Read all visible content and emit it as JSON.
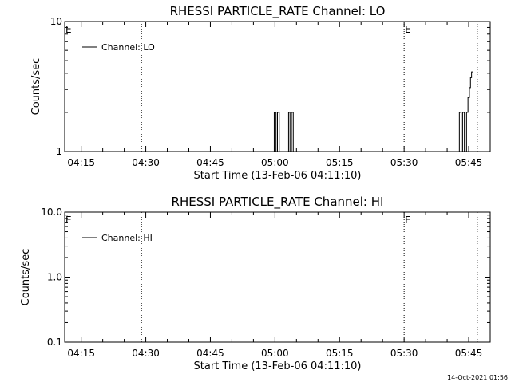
{
  "footer": {
    "timestamp": "14-Oct-2021 01:56"
  },
  "chart_data": [
    {
      "type": "line",
      "title": "RHESSI PARTICLE_RATE Channel: LO",
      "xlabel": "Start Time (13-Feb-06 04:11:10)",
      "ylabel": "Counts/sec",
      "yscale": "log",
      "ylim": [
        1,
        10
      ],
      "ytick_labels": [
        "1",
        "10"
      ],
      "xlim": [
        "04:11:10",
        "05:50:00"
      ],
      "xtick_labels": [
        "04:15",
        "04:30",
        "04:45",
        "05:00",
        "05:15",
        "05:30",
        "05:45"
      ],
      "legend": {
        "location": "top-left",
        "entries": [
          "Channel: LO"
        ]
      },
      "event_markers": [
        {
          "time": "04:29:00",
          "label": ""
        },
        {
          "time": "05:30:00",
          "label": "E"
        },
        {
          "time": "05:47:00",
          "label": ""
        }
      ],
      "start_marker_label": "E",
      "series": [
        {
          "name": "Channel: LO",
          "color": "#000000",
          "points": [
            [
              "04:11:10",
              1
            ],
            [
              "04:59:50",
              1
            ],
            [
              "04:59:50",
              2
            ],
            [
              "05:00:15",
              2
            ],
            [
              "05:00:15",
              1
            ],
            [
              "05:00:35",
              1
            ],
            [
              "05:00:35",
              2
            ],
            [
              "05:01:00",
              2
            ],
            [
              "05:01:00",
              1
            ],
            [
              "05:03:10",
              1
            ],
            [
              "05:03:10",
              2
            ],
            [
              "05:03:30",
              2
            ],
            [
              "05:03:30",
              1
            ],
            [
              "05:03:50",
              1
            ],
            [
              "05:03:50",
              2
            ],
            [
              "05:04:15",
              2
            ],
            [
              "05:04:15",
              1
            ],
            [
              "05:05:10",
              1
            ],
            [
              "05:42:50",
              1
            ],
            [
              "05:42:50",
              2
            ],
            [
              "05:43:15",
              2
            ],
            [
              "05:43:15",
              1
            ],
            [
              "05:43:35",
              1
            ],
            [
              "05:43:35",
              2
            ],
            [
              "05:44:00",
              2
            ],
            [
              "05:44:00",
              1
            ],
            [
              "05:44:30",
              1
            ],
            [
              "05:44:30",
              2
            ],
            [
              "05:44:50",
              2
            ],
            [
              "05:44:50",
              2.6
            ],
            [
              "05:45:10",
              2.6
            ],
            [
              "05:45:10",
              3.1
            ],
            [
              "05:45:25",
              3.1
            ],
            [
              "05:45:25",
              3.7
            ],
            [
              "05:45:40",
              3.7
            ],
            [
              "05:45:40",
              4.1
            ],
            [
              "05:46:00",
              4.1
            ]
          ]
        }
      ]
    },
    {
      "type": "line",
      "title": "RHESSI PARTICLE_RATE Channel: HI",
      "xlabel": "Start Time (13-Feb-06 04:11:10)",
      "ylabel": "Counts/sec",
      "yscale": "log",
      "ylim": [
        0.1,
        10
      ],
      "ytick_labels": [
        "0.1",
        "1.0",
        "10.0"
      ],
      "xlim": [
        "04:11:10",
        "05:50:00"
      ],
      "xtick_labels": [
        "04:15",
        "04:30",
        "04:45",
        "05:00",
        "05:15",
        "05:30",
        "05:45"
      ],
      "legend": {
        "location": "top-left",
        "entries": [
          "Channel: HI"
        ]
      },
      "event_markers": [
        {
          "time": "04:29:00",
          "label": ""
        },
        {
          "time": "05:30:00",
          "label": "E"
        },
        {
          "time": "05:47:00",
          "label": ""
        }
      ],
      "start_marker_label": "E",
      "series": [
        {
          "name": "Channel: HI",
          "color": "#000000",
          "points": []
        }
      ]
    }
  ]
}
